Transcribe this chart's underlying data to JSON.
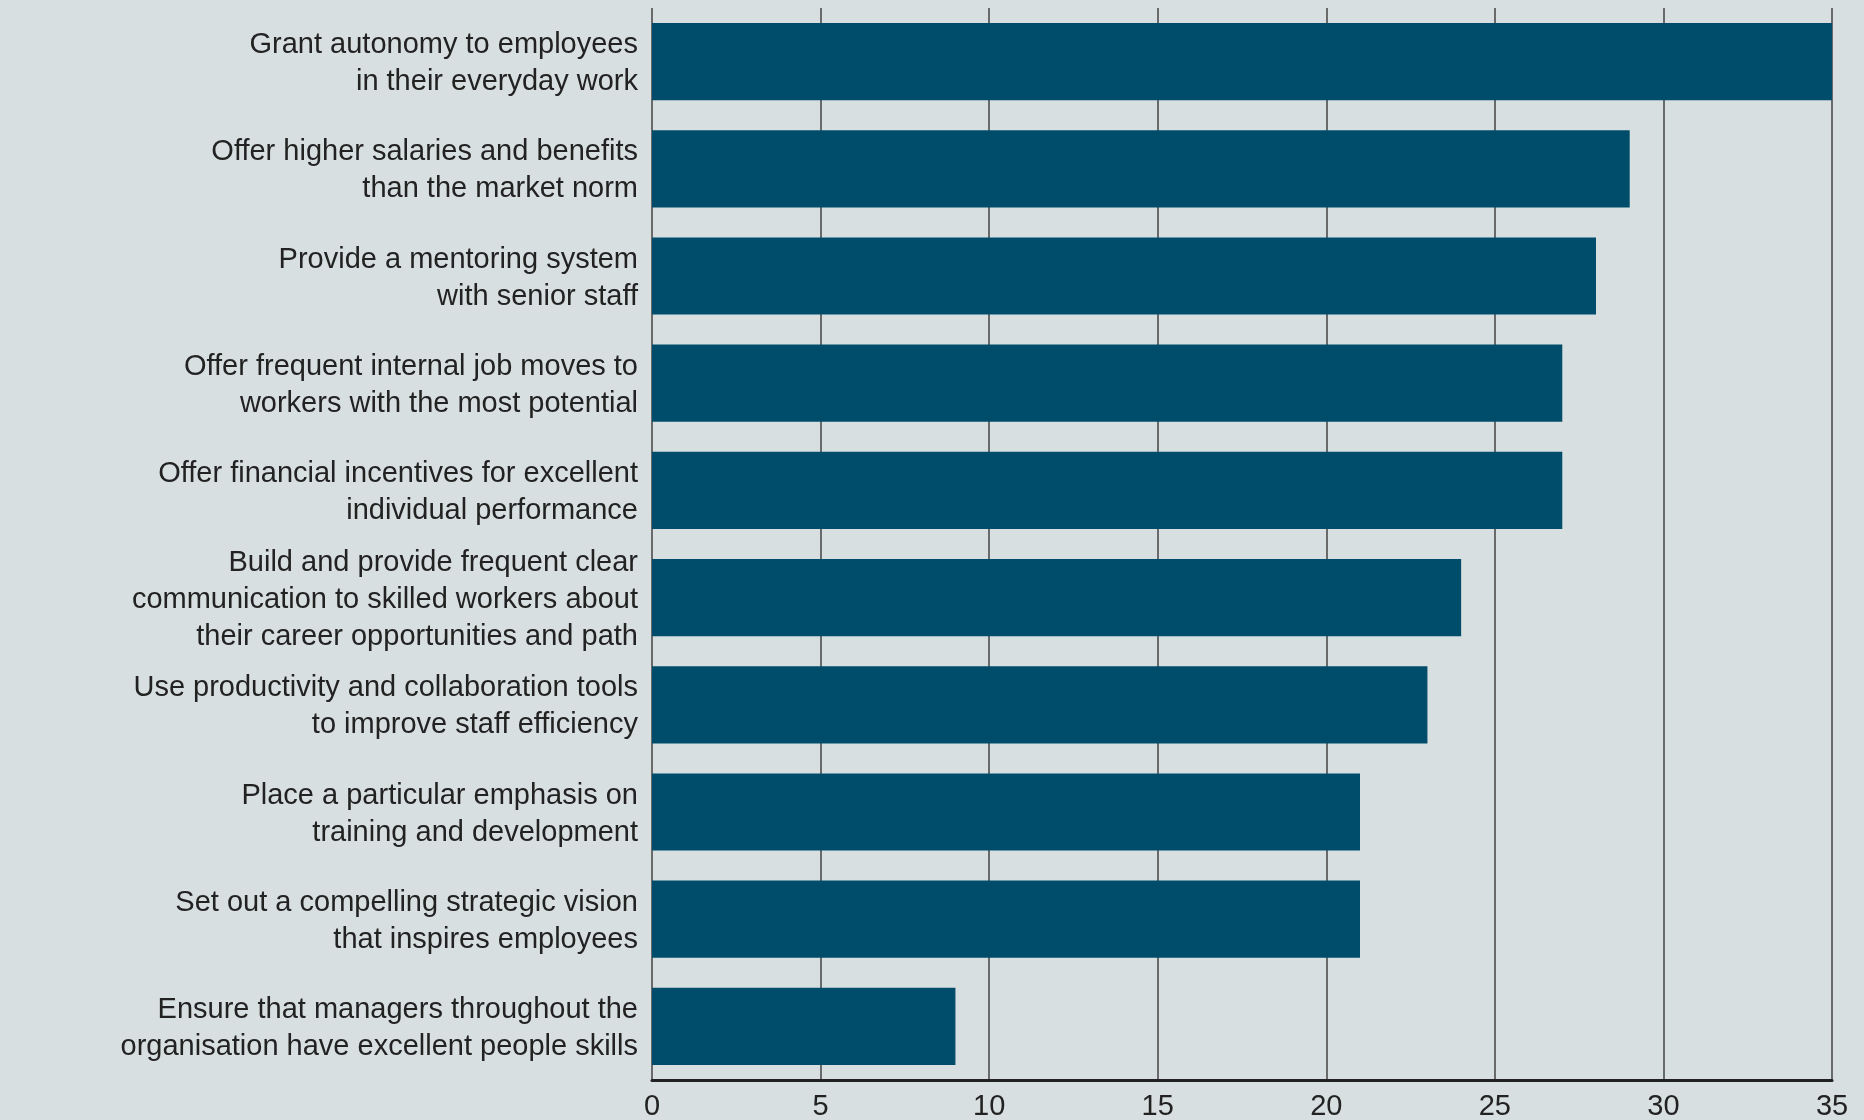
{
  "chart_data": {
    "type": "bar",
    "orientation": "horizontal",
    "categories": [
      "Grant autonomy to employees\nin their everyday work",
      "Offer higher salaries and benefits\nthan the market norm",
      "Provide a mentoring system\nwith senior staff",
      "Offer frequent internal job moves to\nworkers with the most potential",
      "Offer financial incentives for excellent\nindividual performance",
      "Build and provide frequent clear\ncommunication to skilled workers about\ntheir career opportunities and path",
      "Use productivity and collaboration tools\nto improve staff efficiency",
      "Place a particular emphasis on\ntraining and development",
      "Set out a compelling strategic vision\nthat inspires employees",
      "Ensure that managers throughout the\norganisation have excellent people skills"
    ],
    "values": [
      35,
      29,
      28,
      27,
      27,
      24,
      23,
      21,
      21,
      9
    ],
    "color": "#004d6b",
    "xlim": [
      0,
      35
    ],
    "xticks": [
      0,
      5,
      10,
      15,
      20,
      25,
      30,
      35
    ],
    "grid": "x"
  }
}
